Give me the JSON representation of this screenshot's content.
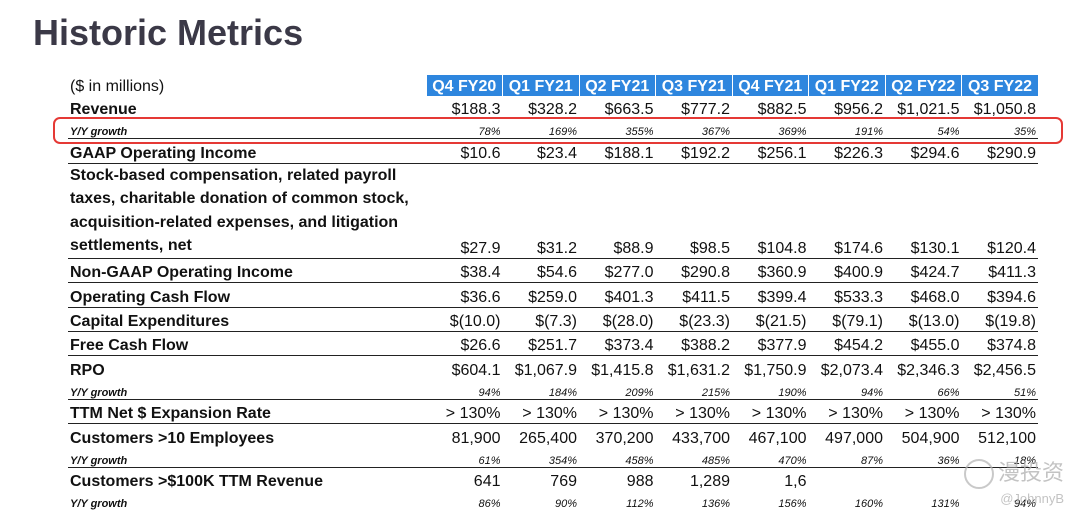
{
  "title": "Historic Metrics",
  "units_label": "($ in millions)",
  "quarters": [
    "Q4 FY20",
    "Q1 FY21",
    "Q2 FY21",
    "Q3 FY21",
    "Q4 FY21",
    "Q1 FY22",
    "Q2 FY22",
    "Q3 FY22"
  ],
  "rows": [
    {
      "label": "Revenue",
      "kind": "main",
      "values": [
        "$188.3",
        "$328.2",
        "$663.5",
        "$777.2",
        "$882.5",
        "$956.2",
        "$1,021.5",
        "$1,050.8"
      ]
    },
    {
      "label": "Y/Y growth",
      "kind": "sub",
      "values": [
        "78%",
        "169%",
        "355%",
        "367%",
        "369%",
        "191%",
        "54%",
        "35%"
      ]
    },
    {
      "label": "GAAP Operating Income",
      "kind": "main",
      "values": [
        "$10.6",
        "$23.4",
        "$188.1",
        "$192.2",
        "$256.1",
        "$226.3",
        "$294.6",
        "$290.9"
      ]
    },
    {
      "label": "Stock-based compensation, related payroll taxes, charitable donation of common stock, acquisition-related expenses, and litigation settlements, net",
      "kind": "multi",
      "values": [
        "$27.9",
        "$31.2",
        "$88.9",
        "$98.5",
        "$104.8",
        "$174.6",
        "$130.1",
        "$120.4"
      ]
    },
    {
      "label": "Non-GAAP Operating Income",
      "kind": "main",
      "values": [
        "$38.4",
        "$54.6",
        "$277.0",
        "$290.8",
        "$360.9",
        "$400.9",
        "$424.7",
        "$411.3"
      ]
    },
    {
      "label": "Operating Cash Flow",
      "kind": "main",
      "values": [
        "$36.6",
        "$259.0",
        "$401.3",
        "$411.5",
        "$399.4",
        "$533.3",
        "$468.0",
        "$394.6"
      ]
    },
    {
      "label": "Capital Expenditures",
      "kind": "main",
      "values": [
        "$(10.0)",
        "$(7.3)",
        "$(28.0)",
        "$(23.3)",
        "$(21.5)",
        "$(79.1)",
        "$(13.0)",
        "$(19.8)"
      ]
    },
    {
      "label": "Free Cash Flow",
      "kind": "main",
      "values": [
        "$26.6",
        "$251.7",
        "$373.4",
        "$388.2",
        "$377.9",
        "$454.2",
        "$455.0",
        "$374.8"
      ]
    },
    {
      "label": "RPO",
      "kind": "main",
      "values": [
        "$604.1",
        "$1,067.9",
        "$1,415.8",
        "$1,631.2",
        "$1,750.9",
        "$2,073.4",
        "$2,346.3",
        "$2,456.5"
      ]
    },
    {
      "label": "Y/Y growth",
      "kind": "sub",
      "values": [
        "94%",
        "184%",
        "209%",
        "215%",
        "190%",
        "94%",
        "66%",
        "51%"
      ]
    },
    {
      "label": "TTM Net $ Expansion Rate",
      "kind": "main",
      "values": [
        "> 130%",
        "> 130%",
        "> 130%",
        "> 130%",
        "> 130%",
        "> 130%",
        "> 130%",
        "> 130%"
      ]
    },
    {
      "label": "Customers >10 Employees",
      "kind": "main",
      "values": [
        "81,900",
        "265,400",
        "370,200",
        "433,700",
        "467,100",
        "497,000",
        "504,900",
        "512,100"
      ]
    },
    {
      "label": "Y/Y growth",
      "kind": "sub",
      "values": [
        "61%",
        "354%",
        "458%",
        "485%",
        "470%",
        "87%",
        "36%",
        "18%"
      ]
    },
    {
      "label": "Customers >$100K TTM Revenue",
      "kind": "main",
      "values": [
        "641",
        "769",
        "988",
        "1,289",
        "1,6",
        "",
        "",
        ""
      ]
    },
    {
      "label": "Y/Y growth",
      "kind": "sub",
      "values": [
        "86%",
        "90%",
        "112%",
        "136%",
        "156%",
        "160%",
        "131%",
        "94%"
      ]
    }
  ],
  "watermark": {
    "main": "漫投资",
    "handle": "@JohnnyB"
  }
}
